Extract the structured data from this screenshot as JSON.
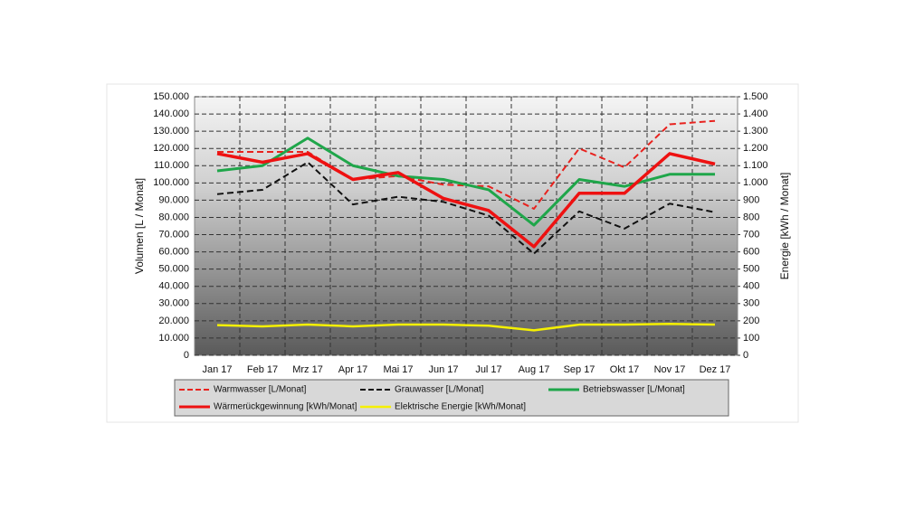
{
  "chart_data": {
    "type": "line",
    "categories": [
      "Jan 17",
      "Feb 17",
      "Mrz 17",
      "Apr 17",
      "Mai 17",
      "Jun 17",
      "Jul 17",
      "Aug 17",
      "Sep 17",
      "Okt 17",
      "Nov 17",
      "Dez 17"
    ],
    "ylabel": "Volumen [L / Monat]",
    "y2label": "Energie [kWh / Monat]",
    "ylim": [
      0,
      150000
    ],
    "yticks": [
      0,
      {
        "value": 10000,
        "label": "10.000"
      },
      {
        "value": 20000,
        "label": "20.000"
      },
      {
        "value": 30000,
        "label": "30.000"
      },
      {
        "value": 40000,
        "label": "40.000"
      },
      {
        "value": 50000,
        "label": "50.000"
      },
      {
        "value": 60000,
        "label": "60.000"
      },
      {
        "value": 70000,
        "label": "70.000"
      },
      {
        "value": 80000,
        "label": "80.000"
      },
      {
        "value": 90000,
        "label": "90.000"
      },
      {
        "value": 100000,
        "label": "100.000"
      },
      {
        "value": 110000,
        "label": "110.000"
      },
      {
        "value": 120000,
        "label": "120.000"
      },
      {
        "value": 130000,
        "label": "130.000"
      },
      {
        "value": 140000,
        "label": "140.000"
      },
      {
        "value": 150000,
        "label": "150.000"
      }
    ],
    "y2lim": [
      0,
      1500
    ],
    "y2ticks": [
      0,
      100,
      200,
      300,
      400,
      500,
      600,
      700,
      800,
      900,
      {
        "value": 1000,
        "label": "1.000"
      },
      {
        "value": 1100,
        "label": "1.100"
      },
      {
        "value": 1200,
        "label": "1.200"
      },
      {
        "value": 1300,
        "label": "1.300"
      },
      {
        "value": 1400,
        "label": "1.400"
      },
      {
        "value": 1500,
        "label": "1.500"
      }
    ],
    "grid": true,
    "legend": "bottom",
    "series": [
      {
        "name": "Warmwasser [L/Monat]",
        "color": "#e8221e",
        "dashed": true,
        "width": 2,
        "values": [
          118000,
          118000,
          118000,
          102000,
          104000,
          99000,
          98000,
          85000,
          120000,
          109000,
          134000,
          136000
        ]
      },
      {
        "name": "Grauwasser [L/Monat]",
        "color": "#111111",
        "dashed": true,
        "width": 2,
        "values": [
          93500,
          96000,
          112000,
          87500,
          92000,
          89000,
          81000,
          59000,
          83500,
          73500,
          88000,
          83000
        ]
      },
      {
        "name": "Betriebswasser [L/Monat]",
        "color": "#1fa64a",
        "dashed": false,
        "width": 3,
        "values": [
          107000,
          110000,
          126000,
          110000,
          104000,
          102000,
          96000,
          75500,
          102000,
          98000,
          105000,
          105000
        ]
      },
      {
        "name": "Wärmerückgewinnung [kWh/Monat]",
        "color": "#ee1111",
        "dashed": false,
        "width": 3.5,
        "axis": "y2",
        "values": [
          1170,
          1120,
          1170,
          1020,
          1060,
          910,
          840,
          630,
          940,
          940,
          1170,
          1110
        ]
      },
      {
        "name": "Elektrische Energie [kWh/Monat]",
        "color": "#f5f000",
        "dashed": false,
        "width": 2.5,
        "axis": "y2",
        "values": [
          175,
          168,
          178,
          168,
          178,
          178,
          172,
          145,
          178,
          178,
          182,
          178
        ]
      }
    ]
  }
}
